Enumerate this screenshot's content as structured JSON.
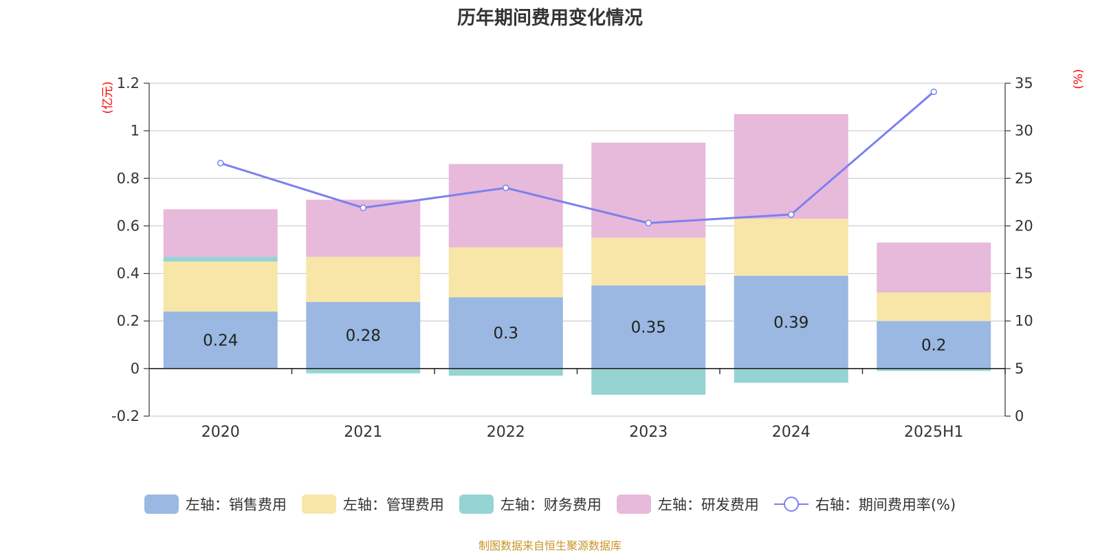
{
  "chart_data": {
    "type": "bar",
    "title": "历年期间费用变化情况",
    "categories": [
      "2020",
      "2021",
      "2022",
      "2023",
      "2024",
      "2025H1"
    ],
    "y_left": {
      "unit_label": "(亿元)",
      "range": [
        -0.2,
        1.2
      ],
      "ticks": [
        "-0.2",
        "0",
        "0.2",
        "0.4",
        "0.6",
        "0.8",
        "1",
        "1.2"
      ]
    },
    "y_right": {
      "unit_label": "(%)",
      "range": [
        0,
        35
      ],
      "ticks": [
        "0",
        "5",
        "10",
        "15",
        "20",
        "25",
        "30",
        "35"
      ]
    },
    "stacked": true,
    "grid": true,
    "legend_position": "bottom",
    "series": [
      {
        "name": "左轴：销售费用",
        "axis": "left",
        "type": "bar",
        "color": "#9ab8e1",
        "values": [
          0.24,
          0.28,
          0.3,
          0.35,
          0.39,
          0.2
        ],
        "labels": [
          "0.24",
          "0.28",
          "0.3",
          "0.35",
          "0.39",
          "0.2"
        ]
      },
      {
        "name": "左轴：管理费用",
        "axis": "left",
        "type": "bar",
        "color": "#f8e6a8",
        "values": [
          0.21,
          0.19,
          0.21,
          0.2,
          0.24,
          0.12
        ]
      },
      {
        "name": "左轴：财务费用",
        "axis": "left",
        "type": "bar",
        "color": "#96d4d3",
        "values": [
          0.02,
          -0.02,
          -0.03,
          -0.11,
          -0.06,
          -0.01
        ]
      },
      {
        "name": "左轴：研发费用",
        "axis": "left",
        "type": "bar",
        "color": "#e7b9da",
        "values": [
          0.2,
          0.24,
          0.35,
          0.4,
          0.44,
          0.21
        ]
      },
      {
        "name": "右轴：期间费用率(%)",
        "axis": "right",
        "type": "line",
        "color": "#7b80ef",
        "values": [
          26.6,
          21.9,
          24.0,
          20.3,
          21.2,
          34.1
        ]
      }
    ]
  },
  "footer": {
    "source": "制图数据来自恒生聚源数据库"
  }
}
